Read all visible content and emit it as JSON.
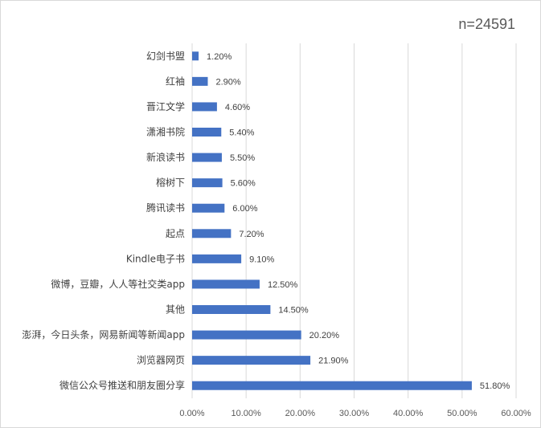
{
  "chart_data": {
    "type": "bar",
    "orientation": "horizontal",
    "annotation": "n=24591",
    "categories": [
      "幻剑书盟",
      "红袖",
      "晋江文学",
      "潇湘书院",
      "新浪读书",
      "榕树下",
      "腾讯读书",
      "起点",
      "Kindle电子书",
      "微博，豆瓣，人人等社交类app",
      "其他",
      "澎湃，今日头条，网易新闻等新闻app",
      "浏览器网页",
      "微信公众号推送和朋友圈分享"
    ],
    "values": [
      1.2,
      2.9,
      4.6,
      5.4,
      5.5,
      5.6,
      6.0,
      7.2,
      9.1,
      12.5,
      14.5,
      20.2,
      21.9,
      51.8
    ],
    "value_labels": [
      "1.20%",
      "2.90%",
      "4.60%",
      "5.40%",
      "5.50%",
      "5.60%",
      "6.00%",
      "7.20%",
      "9.10%",
      "12.50%",
      "14.50%",
      "20.20%",
      "21.90%",
      "51.80%"
    ],
    "xlim": [
      0,
      60
    ],
    "xticks": [
      0,
      10,
      20,
      30,
      40,
      50,
      60
    ],
    "xtick_labels": [
      "0.00%",
      "10.00%",
      "20.00%",
      "30.00%",
      "40.00%",
      "50.00%",
      "60.00%"
    ],
    "grid": "vertical",
    "bar_color": "#4472c4",
    "legend": "none"
  }
}
